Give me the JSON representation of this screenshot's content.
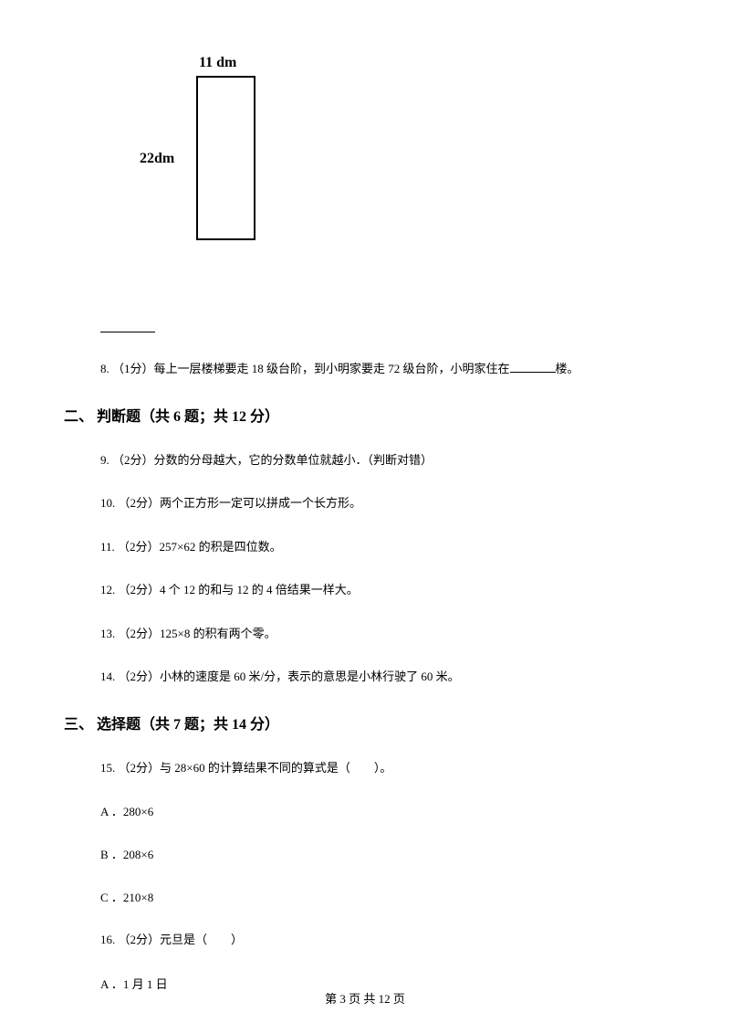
{
  "diagram": {
    "topLabel": "11 dm",
    "leftLabel": "22dm"
  },
  "q8": {
    "prefix": "8. （1分）每上一层楼梯要走 18 级台阶，到小明家要走 72 级台阶，小明家住在",
    "suffix": "楼。"
  },
  "section2": {
    "title": "二、 判断题（共 6 题；共 12 分）"
  },
  "q9": "9. （2分）分数的分母越大，它的分数单位就越小．（判断对错）",
  "q10": "10. （2分）两个正方形一定可以拼成一个长方形。",
  "q11": "11. （2分）257×62 的积是四位数。",
  "q12": "12. （2分）4 个 12 的和与 12 的 4 倍结果一样大。",
  "q13": "13. （2分）125×8 的积有两个零。",
  "q14": "14. （2分）小林的速度是 60 米/分，表示的意思是小林行驶了 60 米。",
  "section3": {
    "title": "三、 选择题（共 7 题；共 14 分）"
  },
  "q15": {
    "stem": "15. （2分）与 28×60 的计算结果不同的算式是（　　）。",
    "optA": "A ．280×6",
    "optB": "B ．208×6",
    "optC": "C ．210×8"
  },
  "q16": {
    "stem": "16. （2分）元旦是（　　）",
    "optA": "A ．1 月 1 日"
  },
  "footer": "第 3 页 共 12 页"
}
